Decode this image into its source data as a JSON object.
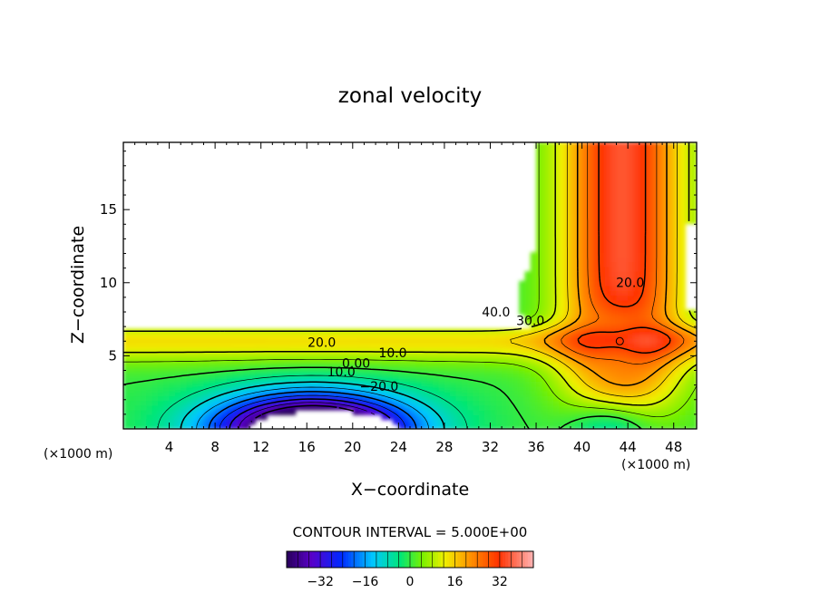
{
  "chart_data": {
    "type": "heatmap",
    "title": "zonal velocity",
    "xlabel": "X−coordinate",
    "ylabel": "Z−coordinate",
    "x_unit_left": "(×1000 m)",
    "x_unit_right": "(×1000 m)",
    "xlim": [
      0,
      50
    ],
    "ylim": [
      0,
      19.6
    ],
    "x_ticks": [
      4,
      8,
      12,
      16,
      20,
      24,
      28,
      32,
      36,
      40,
      44,
      48
    ],
    "y_ticks": [
      5,
      10,
      15
    ],
    "contour_interval_label": "CONTOUR INTERVAL = 5.000E+00",
    "colorbar": {
      "min": -44,
      "max": 44,
      "ticks": [
        -32,
        -16,
        0,
        16,
        32
      ],
      "tick_labels": [
        "−32",
        "−16",
        "0",
        "16",
        "32"
      ]
    },
    "contour_labels": [
      {
        "text": "40.0",
        "x": 32.5,
        "y": 7.7
      },
      {
        "text": "30.0",
        "x": 35.5,
        "y": 7.1
      },
      {
        "text": "20.0",
        "x": 44.2,
        "y": 9.7
      },
      {
        "text": "20.0",
        "x": 17.3,
        "y": 5.6
      },
      {
        "text": "10.0",
        "x": 23.5,
        "y": 4.9
      },
      {
        "text": "0.00",
        "x": 20.3,
        "y": 4.2
      },
      {
        "text": "10.0",
        "x": 19.0,
        "y": 3.6
      },
      {
        "text": "−20.0",
        "x": 22.3,
        "y": 2.6
      }
    ]
  }
}
